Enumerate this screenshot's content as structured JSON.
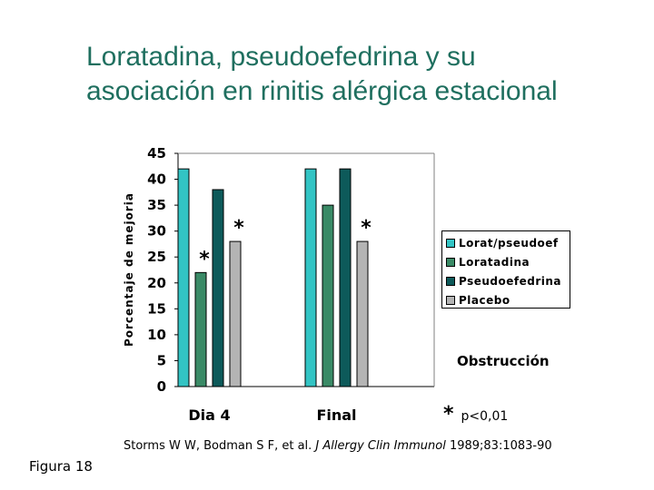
{
  "title": {
    "line1": "Loratadina, pseudoefedrina y su",
    "line2": "asociación en rinitis alérgica estacional"
  },
  "chart_data": {
    "type": "bar",
    "categories": [
      "Dia 4",
      "Final"
    ],
    "ylabel": "Porcentaje de mejoria",
    "xlabel": "",
    "ylim": [
      0,
      45
    ],
    "yticks": [
      0,
      5,
      10,
      15,
      20,
      25,
      30,
      35,
      40,
      45
    ],
    "grid": false,
    "legend_position": "right",
    "series": [
      {
        "name": "Lorat/pseudoef",
        "color": "#33c4c4",
        "values": [
          42,
          42
        ]
      },
      {
        "name": "Loratadina",
        "color": "#3a8a66",
        "values": [
          22,
          35
        ]
      },
      {
        "name": "Pseudoefedrina",
        "color": "#0d5a5a",
        "values": [
          38,
          42
        ]
      },
      {
        "name": "Placebo",
        "color": "#b4b4b4",
        "values": [
          28,
          28
        ]
      }
    ],
    "annotations": [
      {
        "text": "*",
        "category": "Dia 4",
        "series": "Loratadina"
      },
      {
        "text": "*",
        "category": "Dia 4",
        "series": "Placebo"
      },
      {
        "text": "*",
        "category": "Final",
        "series": "Placebo"
      }
    ]
  },
  "panel_label": "Obstrucción",
  "significance": {
    "symbol": "*",
    "text": "p<0,01"
  },
  "citation": {
    "authors": "Storms W W, Bodman S F, et al. ",
    "journal": "J Allergy Clin Immunol",
    "rest": " 1989;83:1083-90"
  },
  "figure_label": "Figura 18"
}
